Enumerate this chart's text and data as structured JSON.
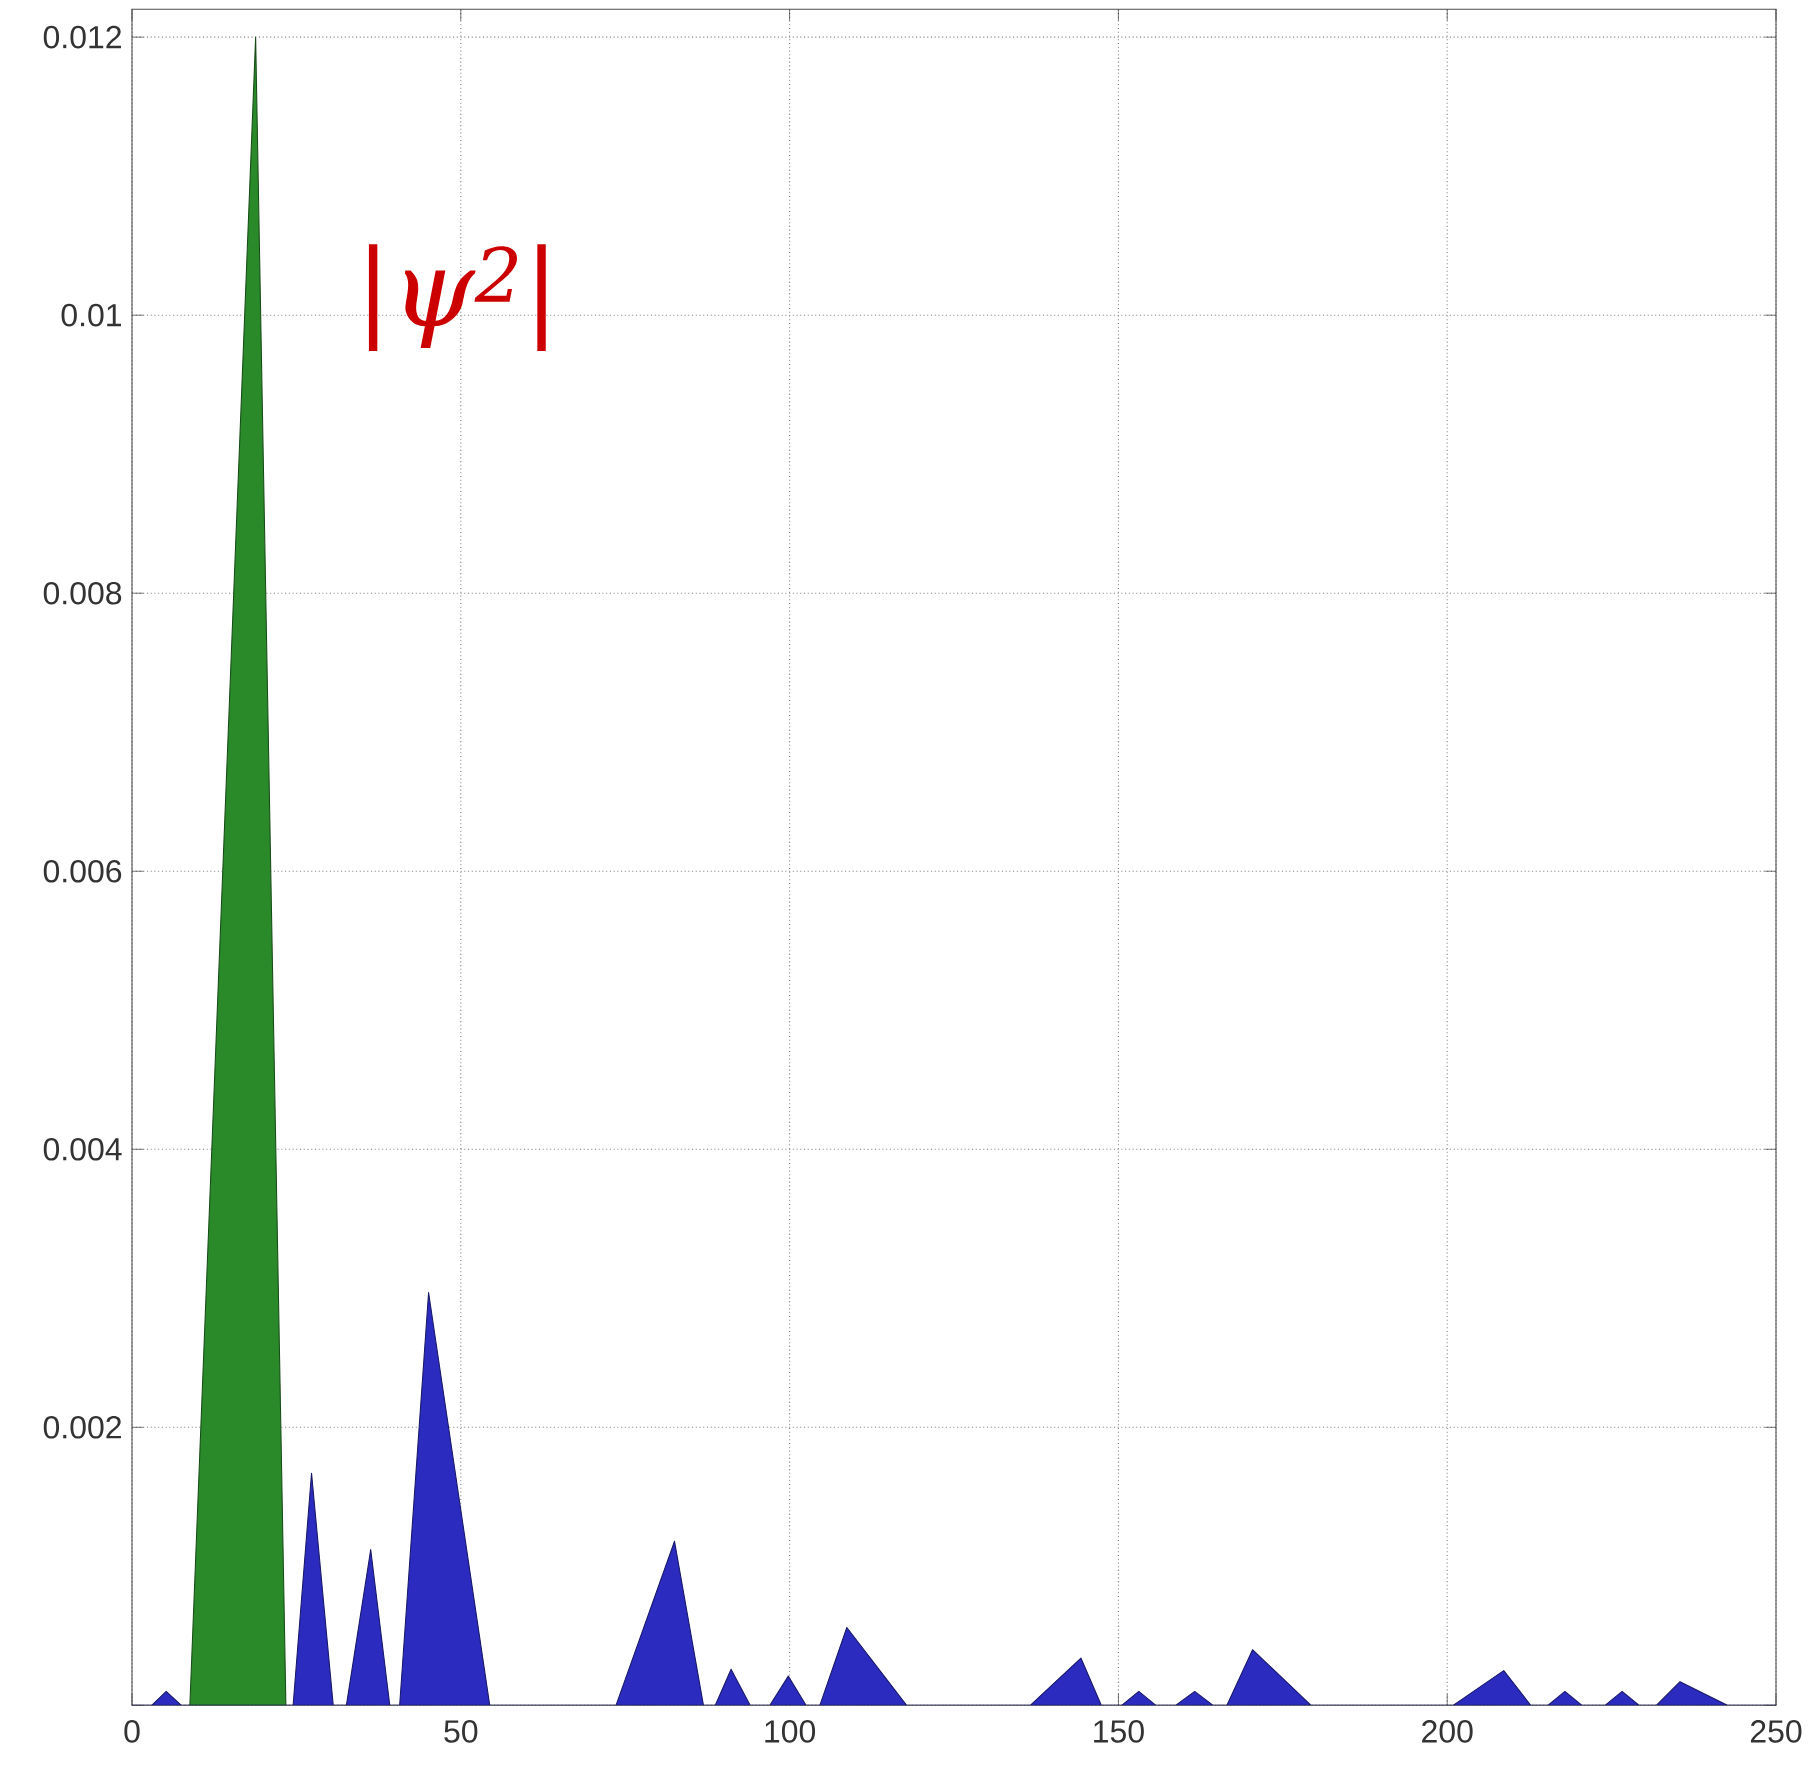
{
  "chart_data": {
    "type": "area",
    "annotations": [
      "|ψ$^{2}$|"
    ],
    "series": [
      {
        "color": "#2a8a2a",
        "x": [
          8.8,
          18.8,
          23.4
        ],
        "values": [
          0,
          0.012,
          0
        ]
      },
      {
        "color": "#2b2bbf",
        "x": [
          0,
          3,
          5.2,
          7.5,
          24.5,
          27.3,
          30.6,
          32.6,
          36.3,
          39.2,
          40.7,
          45.1,
          54.4,
          73.6,
          82.5,
          86.9,
          88.7,
          91.1,
          94,
          97,
          99.8,
          102.5,
          104.6,
          108.7,
          117.8,
          136.6,
          144.3,
          147.4,
          150.5,
          153.1,
          155.7,
          158.7,
          161.6,
          164.4,
          166.5,
          170.4,
          179.3,
          200.9,
          208.6,
          212.7,
          215.3,
          217.9,
          220.5,
          224,
          226.6,
          229.2,
          231.8,
          235.4,
          242.6,
          250
        ],
        "values": [
          0,
          0,
          0.0001,
          0,
          0,
          0.00167,
          0,
          0,
          0.00112,
          0,
          0,
          0.00297,
          0,
          0,
          0.00118,
          0,
          0,
          0.00026,
          0,
          0,
          0.00021,
          0,
          0,
          0.00056,
          0,
          0,
          0.00034,
          0,
          0,
          0.0001,
          0,
          0,
          0.0001,
          0,
          0,
          0.0004,
          0,
          0,
          0.00025,
          0,
          0,
          0.0001,
          0,
          0,
          0.0001,
          0,
          0,
          0.00017,
          0,
          0
        ]
      }
    ],
    "xlim": [
      0,
      250
    ],
    "ylim": [
      0,
      0.0122
    ],
    "xticks": [
      0,
      50,
      100,
      150,
      200,
      250
    ],
    "yticks": [
      {
        "value": 0,
        "label": null
      },
      0.002,
      0.004,
      0.006,
      0.008,
      0.01,
      0.012
    ],
    "grid": true
  }
}
